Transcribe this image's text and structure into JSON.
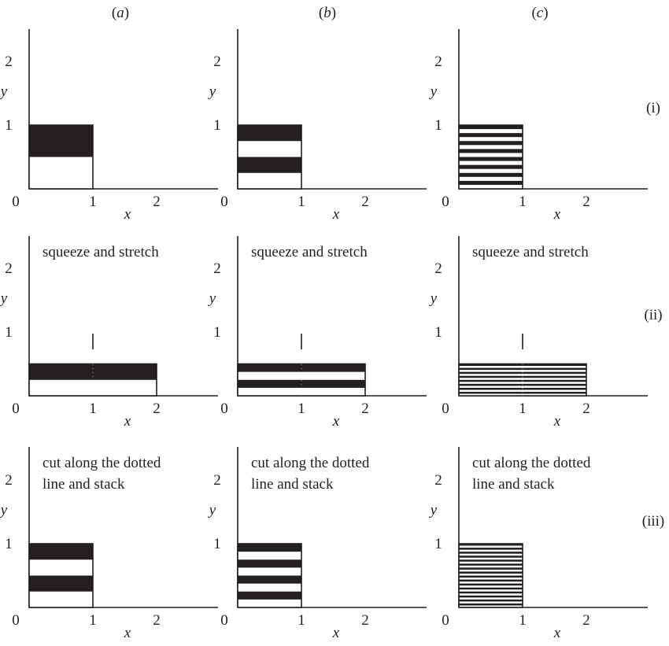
{
  "columns": [
    {
      "open": "(",
      "letter": "a",
      "close": ")"
    },
    {
      "open": "(",
      "letter": "b",
      "close": ")"
    },
    {
      "open": "(",
      "letter": "c",
      "close": ")"
    }
  ],
  "rows": [
    {
      "label": "(i)",
      "caption": []
    },
    {
      "label": "(ii)",
      "caption": [
        "squeeze and stretch"
      ]
    },
    {
      "label": "(iii)",
      "caption": [
        "cut along the dotted",
        "line and stack"
      ]
    }
  ],
  "axes": {
    "x_label": "x",
    "y_label": "y",
    "x_ticks": [
      "0",
      "1",
      "2"
    ],
    "y_ticks": [
      "1",
      "2"
    ]
  },
  "panels": [
    {
      "id": "a-i",
      "stripes": 2,
      "rect_width": 1,
      "rect_height": 1
    },
    {
      "id": "b-i",
      "stripes": 4,
      "rect_width": 1,
      "rect_height": 1
    },
    {
      "id": "c-i",
      "stripes": 16,
      "rect_width": 1,
      "rect_height": 1
    },
    {
      "id": "a-ii",
      "stripes": 2,
      "rect_width": 2,
      "rect_height": 0.5
    },
    {
      "id": "b-ii",
      "stripes": 4,
      "rect_width": 2,
      "rect_height": 0.5
    },
    {
      "id": "c-ii",
      "stripes": 16,
      "rect_width": 2,
      "rect_height": 0.5
    },
    {
      "id": "a-iii",
      "stripes": 4,
      "rect_width": 1,
      "rect_height": 1
    },
    {
      "id": "b-iii",
      "stripes": 8,
      "rect_width": 1,
      "rect_height": 1
    },
    {
      "id": "c-iii",
      "stripes": 32,
      "rect_width": 1,
      "rect_height": 1
    }
  ],
  "colors": {
    "ink": "#231f20",
    "paper": "#ffffff"
  }
}
